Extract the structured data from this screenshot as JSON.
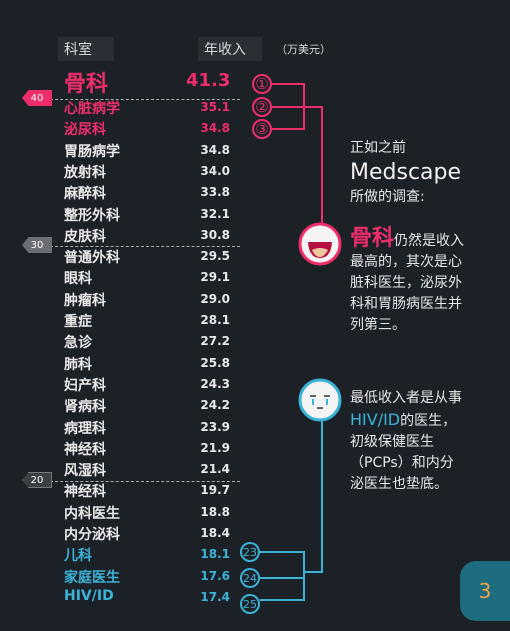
{
  "chart_data": {
    "type": "table",
    "columns": [
      "科室",
      "年收入"
    ],
    "unit": "（万美元）",
    "rows": [
      {
        "name": "骨科",
        "value": "41.3"
      },
      {
        "name": "心脏病学",
        "value": "35.1"
      },
      {
        "name": "泌尿科",
        "value": "34.8"
      },
      {
        "name": "胃肠病学",
        "value": "34.8"
      },
      {
        "name": "放射科",
        "value": "34.0"
      },
      {
        "name": "麻醉科",
        "value": "33.8"
      },
      {
        "name": "整形外科",
        "value": "32.1"
      },
      {
        "name": "皮肤科",
        "value": "30.8"
      },
      {
        "name": "普通外科",
        "value": "29.5"
      },
      {
        "name": "眼科",
        "value": "29.1"
      },
      {
        "name": "肿瘤科",
        "value": "29.0"
      },
      {
        "name": "重症",
        "value": "28.1"
      },
      {
        "name": "急诊",
        "value": "27.2"
      },
      {
        "name": "肺科",
        "value": "25.8"
      },
      {
        "name": "妇产科",
        "value": "24.3"
      },
      {
        "name": "肾病科",
        "value": "24.2"
      },
      {
        "name": "病理科",
        "value": "23.9"
      },
      {
        "name": "神经科",
        "value": "21.9"
      },
      {
        "name": "风湿科",
        "value": "21.4"
      },
      {
        "name": "神经科",
        "value": "19.7"
      },
      {
        "name": "内科医生",
        "value": "18.8"
      },
      {
        "name": "内分泌科",
        "value": "18.4"
      },
      {
        "name": "儿科",
        "value": "18.1"
      },
      {
        "name": "家庭医生",
        "value": "17.6"
      },
      {
        "name": "HIV/ID",
        "value": "17.4"
      }
    ],
    "thresholds": [
      "40",
      "30",
      "20"
    ],
    "top_ranks": [
      "①",
      "②",
      "③"
    ],
    "bottom_ranks": [
      "23",
      "24",
      "25"
    ]
  },
  "colors": {
    "background": "#1c2128",
    "highlight_high": "#ee2d6b",
    "highlight_low": "#3bb3d6",
    "text": "#e8e8e8"
  },
  "top_note": {
    "line1": "正如之前",
    "line2": "Medscape",
    "line3": "所做的调查:",
    "emph": "骨科",
    "rest1": "仍然是收入",
    "line5": "最高的，其次是心",
    "line6": "脏科医生，泌尿外",
    "line7": "科和胃肠病医生并",
    "line8": "列第三。"
  },
  "bottom_note": {
    "line1": "最低收入者是从事",
    "emph": "HIV/ID",
    "rest2": "的医生，",
    "line3": "初级保健医生",
    "line4": "（PCPs）和内分",
    "line5": "泌医生也垫底。"
  },
  "icons": {
    "happy": "happy-face-icon",
    "sad": "sad-face-icon"
  },
  "page_number": "3"
}
